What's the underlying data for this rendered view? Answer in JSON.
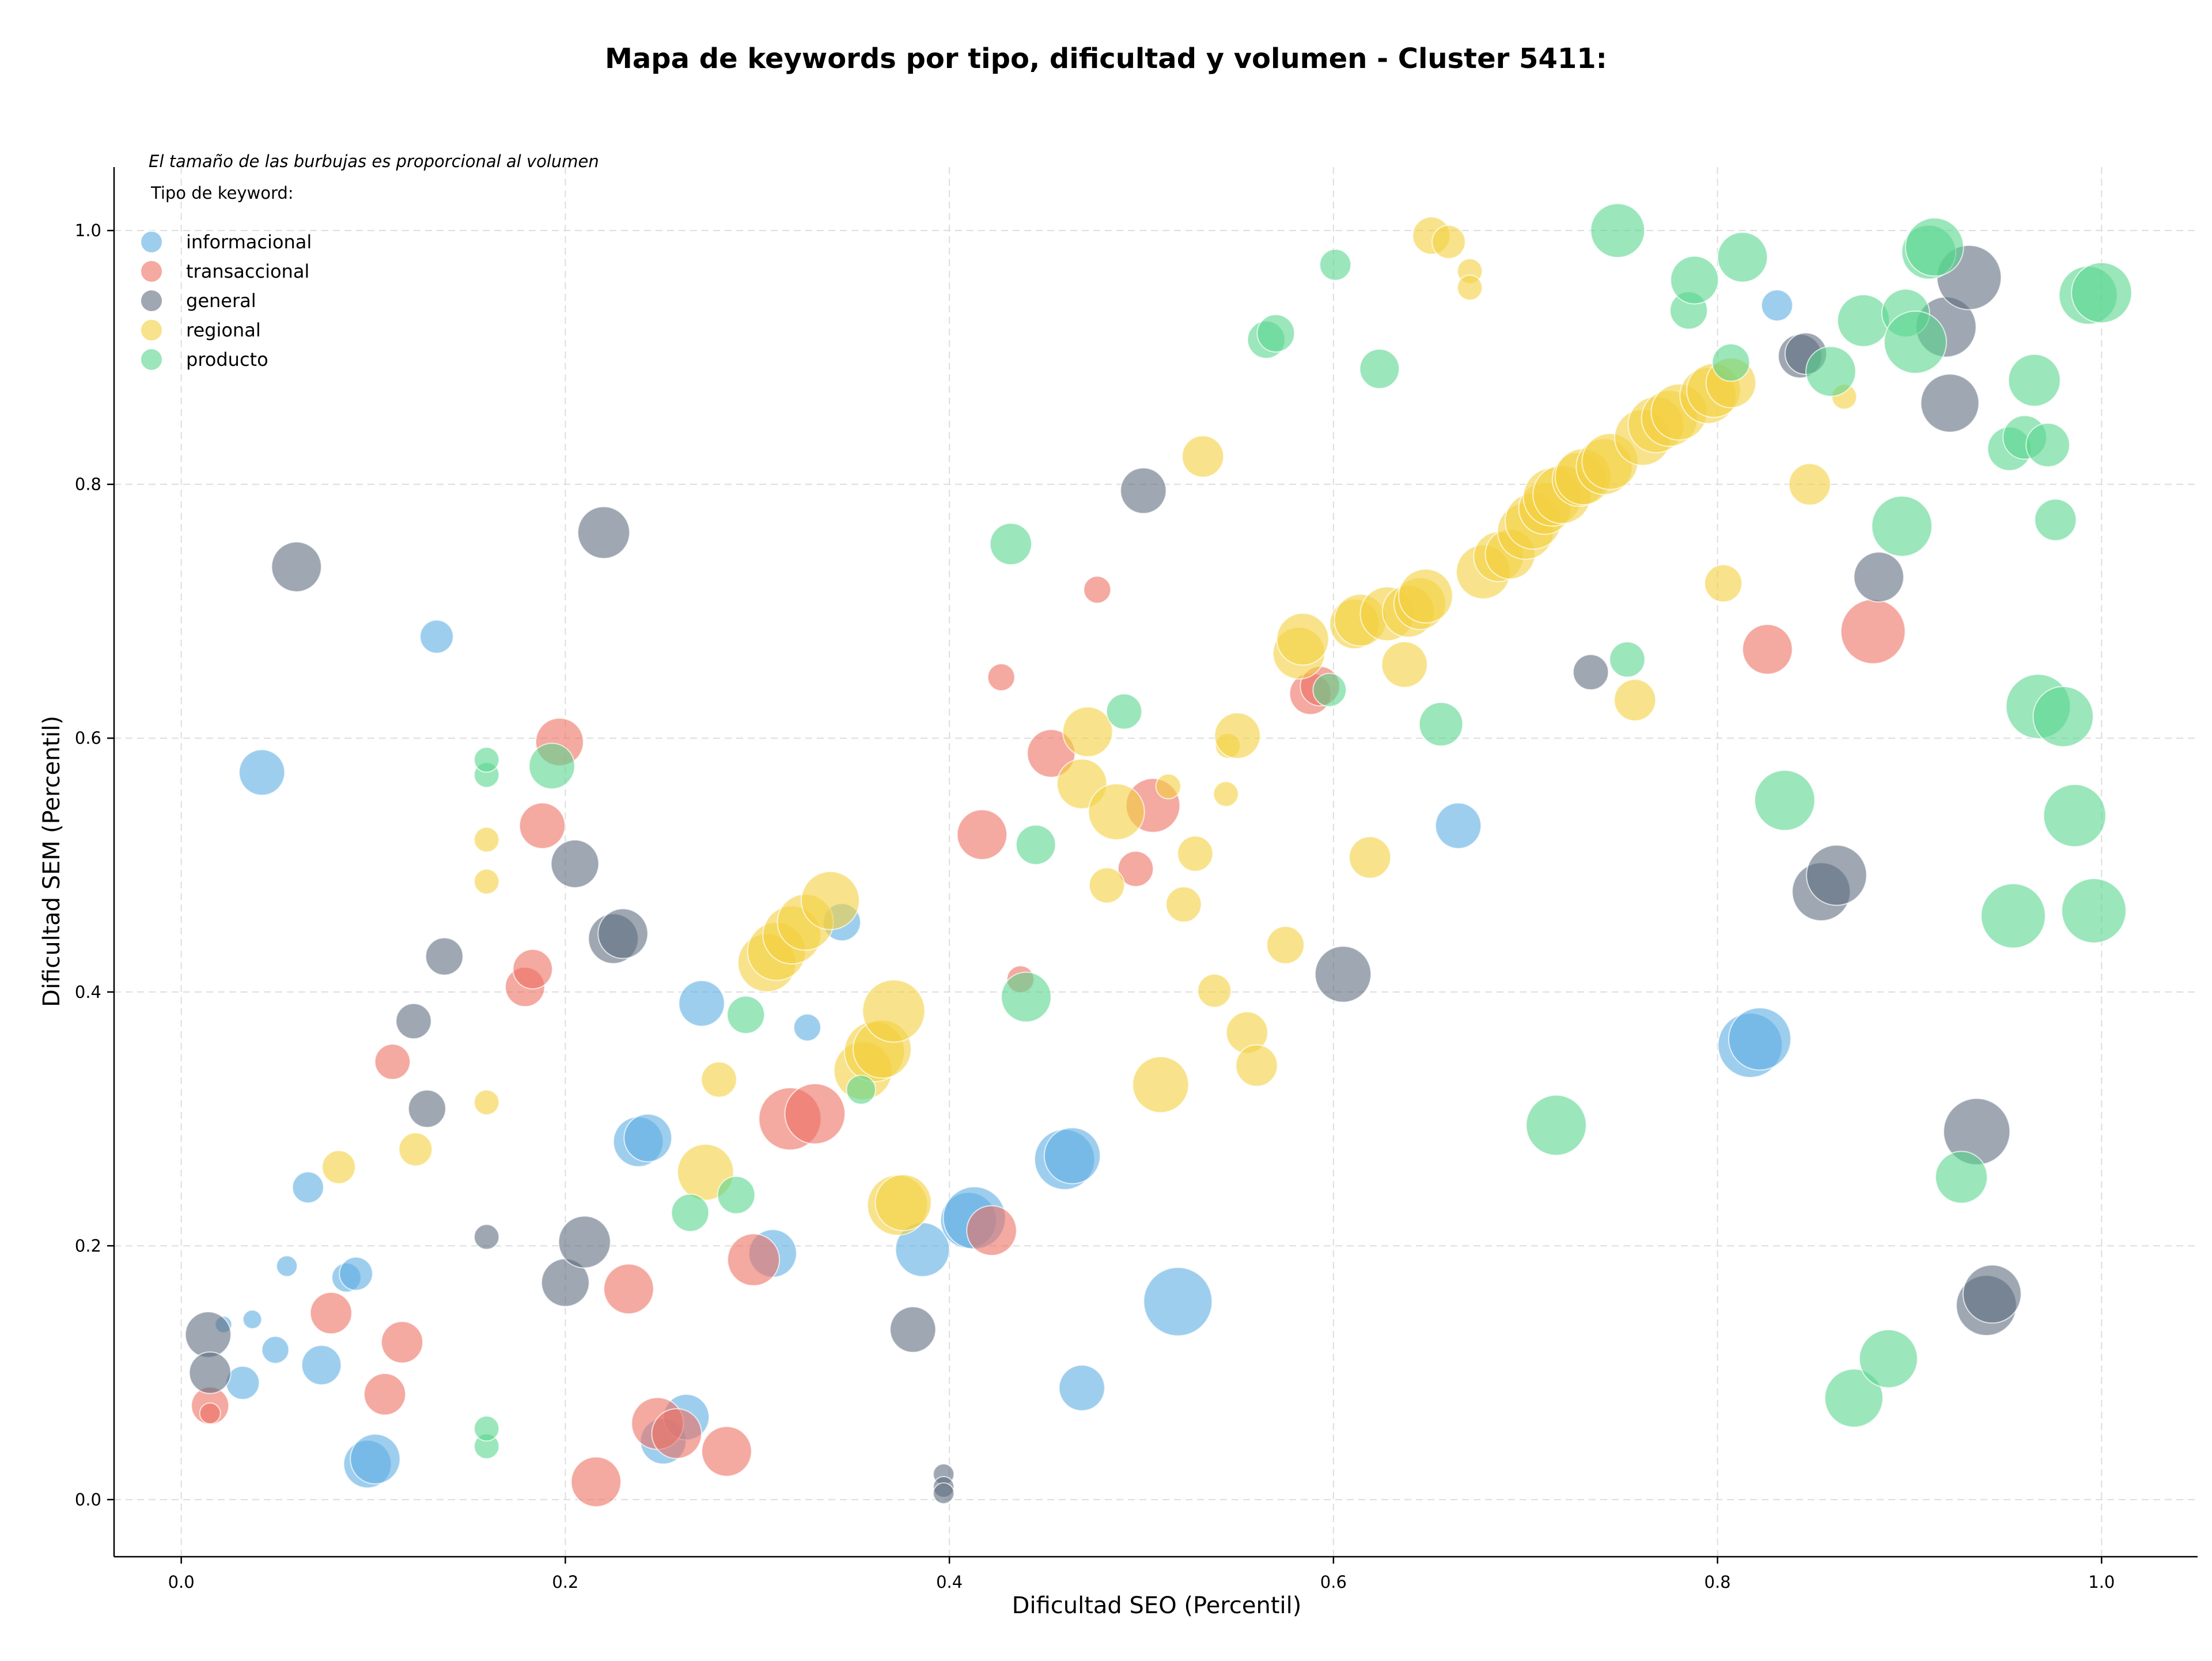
{
  "chart_data": {
    "type": "scatter",
    "title": "Mapa de keywords por tipo, dificultad y volumen - Cluster 5411:",
    "xlabel": "Dificultad SEO (Percentil)",
    "ylabel": "Dificultad SEM (Percentil)",
    "annotation": "El tamaño de las burbujas es proporcional al volumen",
    "legend_title": "Tipo de keyword:",
    "legend_position": "top-left",
    "xlim": [
      -0.035,
      1.05
    ],
    "ylim": [
      -0.045,
      1.05
    ],
    "x_ticks": [
      "0.0",
      "0.2",
      "0.4",
      "0.6",
      "0.8",
      "1.0"
    ],
    "y_ticks": [
      "0.0",
      "0.2",
      "0.4",
      "0.6",
      "0.8",
      "1.0"
    ],
    "grid": true,
    "series": [
      {
        "name": "informacional",
        "color": "#5dade2",
        "points": [
          [
            0.042,
            0.573,
            2.2
          ],
          [
            0.133,
            0.68,
            1.6
          ],
          [
            0.022,
            0.138,
            0.8
          ],
          [
            0.037,
            0.142,
            0.9
          ],
          [
            0.032,
            0.092,
            1.6
          ],
          [
            0.055,
            0.184,
            1.0
          ],
          [
            0.049,
            0.118,
            1.3
          ],
          [
            0.066,
            0.246,
            1.5
          ],
          [
            0.073,
            0.106,
            1.9
          ],
          [
            0.086,
            0.175,
            1.4
          ],
          [
            0.091,
            0.178,
            1.6
          ],
          [
            0.097,
            0.028,
            2.3
          ],
          [
            0.101,
            0.032,
            2.4
          ],
          [
            0.238,
            0.282,
            2.4
          ],
          [
            0.243,
            0.285,
            2.3
          ],
          [
            0.251,
            0.046,
            2.2
          ],
          [
            0.263,
            0.065,
            2.2
          ],
          [
            0.271,
            0.391,
            2.2
          ],
          [
            0.308,
            0.194,
            2.3
          ],
          [
            0.326,
            0.372,
            1.3
          ],
          [
            0.344,
            0.455,
            1.8
          ],
          [
            0.386,
            0.197,
            2.6
          ],
          [
            0.41,
            0.22,
            2.7
          ],
          [
            0.413,
            0.222,
            3.0
          ],
          [
            0.46,
            0.268,
            2.9
          ],
          [
            0.464,
            0.271,
            2.7
          ],
          [
            0.469,
            0.088,
            2.2
          ],
          [
            0.519,
            0.156,
            3.3
          ],
          [
            0.665,
            0.531,
            2.2
          ],
          [
            0.831,
            0.941,
            1.5
          ],
          [
            0.817,
            0.358,
            3.1
          ],
          [
            0.822,
            0.363,
            3.0
          ]
        ]
      },
      {
        "name": "transaccional",
        "color": "#ec7063",
        "points": [
          [
            0.015,
            0.074,
            1.8
          ],
          [
            0.015,
            0.068,
            1.0
          ],
          [
            0.078,
            0.147,
            2.0
          ],
          [
            0.106,
            0.083,
            2.0
          ],
          [
            0.11,
            0.345,
            1.7
          ],
          [
            0.115,
            0.124,
            2.0
          ],
          [
            0.179,
            0.404,
            1.9
          ],
          [
            0.183,
            0.418,
            1.9
          ],
          [
            0.188,
            0.531,
            2.2
          ],
          [
            0.197,
            0.597,
            2.3
          ],
          [
            0.216,
            0.014,
            2.4
          ],
          [
            0.233,
            0.166,
            2.4
          ],
          [
            0.248,
            0.06,
            2.5
          ],
          [
            0.258,
            0.052,
            2.4
          ],
          [
            0.284,
            0.038,
            2.4
          ],
          [
            0.298,
            0.189,
            2.5
          ],
          [
            0.317,
            0.3,
            3.0
          ],
          [
            0.33,
            0.304,
            2.9
          ],
          [
            0.417,
            0.524,
            2.4
          ],
          [
            0.422,
            0.212,
            2.4
          ],
          [
            0.427,
            0.648,
            1.3
          ],
          [
            0.437,
            0.41,
            1.3
          ],
          [
            0.453,
            0.588,
            2.3
          ],
          [
            0.477,
            0.717,
            1.3
          ],
          [
            0.497,
            0.497,
            1.7
          ],
          [
            0.506,
            0.547,
            2.6
          ],
          [
            0.588,
            0.635,
            2.0
          ],
          [
            0.593,
            0.641,
            1.9
          ],
          [
            0.826,
            0.67,
            2.4
          ],
          [
            0.881,
            0.684,
            3.1
          ]
        ]
      },
      {
        "name": "general",
        "color": "#5d6d7e",
        "points": [
          [
            0.014,
            0.13,
            2.2
          ],
          [
            0.015,
            0.1,
            2.0
          ],
          [
            0.06,
            0.735,
            2.4
          ],
          [
            0.121,
            0.377,
            1.7
          ],
          [
            0.128,
            0.308,
            1.8
          ],
          [
            0.137,
            0.428,
            1.8
          ],
          [
            0.159,
            0.207,
            1.2
          ],
          [
            0.205,
            0.501,
            2.3
          ],
          [
            0.2,
            0.171,
            2.3
          ],
          [
            0.21,
            0.203,
            2.5
          ],
          [
            0.22,
            0.762,
            2.5
          ],
          [
            0.225,
            0.442,
            2.4
          ],
          [
            0.23,
            0.446,
            2.4
          ],
          [
            0.381,
            0.134,
            2.2
          ],
          [
            0.397,
            0.02,
            1.0
          ],
          [
            0.397,
            0.01,
            1.0
          ],
          [
            0.397,
            0.005,
            1.0
          ],
          [
            0.501,
            0.795,
            2.2
          ],
          [
            0.605,
            0.414,
            2.7
          ],
          [
            0.734,
            0.652,
            1.7
          ],
          [
            0.843,
            0.901,
            2.1
          ],
          [
            0.846,
            0.903,
            2.0
          ],
          [
            0.854,
            0.479,
            2.8
          ],
          [
            0.862,
            0.492,
            2.9
          ],
          [
            0.884,
            0.727,
            2.4
          ],
          [
            0.919,
            0.924,
            2.9
          ],
          [
            0.921,
            0.864,
            2.8
          ],
          [
            0.931,
            0.963,
            3.1
          ],
          [
            0.935,
            0.29,
            3.2
          ],
          [
            0.94,
            0.153,
            2.9
          ],
          [
            0.943,
            0.162,
            2.8
          ]
        ]
      },
      {
        "name": "regional",
        "color": "#f4d03f",
        "points": [
          [
            0.082,
            0.262,
            1.6
          ],
          [
            0.122,
            0.276,
            1.6
          ],
          [
            0.159,
            0.313,
            1.2
          ],
          [
            0.159,
            0.487,
            1.2
          ],
          [
            0.159,
            0.52,
            1.2
          ],
          [
            0.273,
            0.258,
            2.7
          ],
          [
            0.28,
            0.331,
            1.7
          ],
          [
            0.305,
            0.423,
            2.8
          ],
          [
            0.31,
            0.432,
            2.8
          ],
          [
            0.318,
            0.445,
            2.8
          ],
          [
            0.325,
            0.455,
            2.7
          ],
          [
            0.338,
            0.472,
            2.8
          ],
          [
            0.355,
            0.338,
            2.8
          ],
          [
            0.361,
            0.353,
            2.9
          ],
          [
            0.365,
            0.355,
            2.8
          ],
          [
            0.371,
            0.385,
            3.0
          ],
          [
            0.373,
            0.232,
            2.9
          ],
          [
            0.376,
            0.234,
            2.7
          ],
          [
            0.469,
            0.564,
            2.4
          ],
          [
            0.472,
            0.605,
            2.4
          ],
          [
            0.482,
            0.484,
            1.7
          ],
          [
            0.487,
            0.542,
            2.7
          ],
          [
            0.51,
            0.327,
            2.7
          ],
          [
            0.514,
            0.562,
            1.2
          ],
          [
            0.522,
            0.469,
            1.7
          ],
          [
            0.528,
            0.509,
            1.7
          ],
          [
            0.532,
            0.822,
            2.0
          ],
          [
            0.538,
            0.401,
            1.6
          ],
          [
            0.544,
            0.556,
            1.2
          ],
          [
            0.545,
            0.594,
            1.2
          ],
          [
            0.55,
            0.602,
            2.2
          ],
          [
            0.555,
            0.368,
            2.0
          ],
          [
            0.56,
            0.342,
            2.0
          ],
          [
            0.575,
            0.437,
            1.8
          ],
          [
            0.582,
            0.667,
            2.5
          ],
          [
            0.584,
            0.678,
            2.5
          ],
          [
            0.611,
            0.69,
            2.4
          ],
          [
            0.614,
            0.693,
            2.5
          ],
          [
            0.619,
            0.506,
            2.0
          ],
          [
            0.628,
            0.698,
            2.6
          ],
          [
            0.637,
            0.658,
            2.2
          ],
          [
            0.639,
            0.7,
            2.5
          ],
          [
            0.645,
            0.706,
            2.5
          ],
          [
            0.648,
            0.712,
            2.6
          ],
          [
            0.651,
            0.996,
            1.8
          ],
          [
            0.66,
            0.991,
            1.6
          ],
          [
            0.671,
            0.968,
            1.2
          ],
          [
            0.671,
            0.955,
            1.2
          ],
          [
            0.678,
            0.731,
            2.6
          ],
          [
            0.686,
            0.743,
            2.4
          ],
          [
            0.692,
            0.745,
            2.4
          ],
          [
            0.7,
            0.763,
            2.7
          ],
          [
            0.704,
            0.771,
            2.7
          ],
          [
            0.71,
            0.781,
            2.5
          ],
          [
            0.714,
            0.79,
            2.8
          ],
          [
            0.719,
            0.792,
            2.8
          ],
          [
            0.728,
            0.804,
            2.6
          ],
          [
            0.73,
            0.806,
            2.7
          ],
          [
            0.741,
            0.814,
            2.7
          ],
          [
            0.744,
            0.818,
            2.7
          ],
          [
            0.757,
            0.63,
            2.0
          ],
          [
            0.761,
            0.837,
            2.7
          ],
          [
            0.768,
            0.847,
            2.7
          ],
          [
            0.775,
            0.852,
            2.7
          ],
          [
            0.78,
            0.857,
            2.7
          ],
          [
            0.795,
            0.87,
            2.7
          ],
          [
            0.798,
            0.874,
            2.6
          ],
          [
            0.803,
            0.722,
            1.8
          ],
          [
            0.807,
            0.88,
            2.4
          ],
          [
            0.848,
            0.8,
            2.0
          ],
          [
            0.866,
            0.869,
            1.2
          ]
        ]
      },
      {
        "name": "producto",
        "color": "#58d68d",
        "points": [
          [
            0.159,
            0.571,
            1.2
          ],
          [
            0.159,
            0.583,
            1.2
          ],
          [
            0.159,
            0.042,
            1.2
          ],
          [
            0.159,
            0.056,
            1.2
          ],
          [
            0.193,
            0.578,
            2.2
          ],
          [
            0.265,
            0.226,
            1.8
          ],
          [
            0.289,
            0.24,
            1.8
          ],
          [
            0.294,
            0.382,
            1.8
          ],
          [
            0.354,
            0.323,
            1.4
          ],
          [
            0.432,
            0.753,
            2.0
          ],
          [
            0.44,
            0.396,
            2.4
          ],
          [
            0.445,
            0.516,
            1.9
          ],
          [
            0.491,
            0.621,
            1.7
          ],
          [
            0.565,
            0.914,
            1.8
          ],
          [
            0.57,
            0.919,
            1.8
          ],
          [
            0.601,
            0.973,
            1.5
          ],
          [
            0.598,
            0.638,
            1.6
          ],
          [
            0.624,
            0.891,
            1.9
          ],
          [
            0.656,
            0.611,
            2.1
          ],
          [
            0.716,
            0.295,
            2.9
          ],
          [
            0.748,
            1.0,
            2.6
          ],
          [
            0.753,
            0.662,
            1.7
          ],
          [
            0.785,
            0.937,
            1.8
          ],
          [
            0.788,
            0.961,
            2.3
          ],
          [
            0.807,
            0.896,
            1.8
          ],
          [
            0.813,
            0.979,
            2.4
          ],
          [
            0.835,
            0.551,
            2.9
          ],
          [
            0.859,
            0.889,
            2.4
          ],
          [
            0.871,
            0.08,
            2.8
          ],
          [
            0.876,
            0.929,
            2.5
          ],
          [
            0.889,
            0.111,
            2.8
          ],
          [
            0.896,
            0.767,
            2.9
          ],
          [
            0.898,
            0.935,
            2.3
          ],
          [
            0.903,
            0.912,
            3.0
          ],
          [
            0.91,
            0.983,
            2.6
          ],
          [
            0.913,
            0.987,
            2.8
          ],
          [
            0.927,
            0.254,
            2.5
          ],
          [
            0.954,
            0.46,
            3.1
          ],
          [
            0.952,
            0.828,
            2.1
          ],
          [
            0.96,
            0.837,
            2.1
          ],
          [
            0.965,
            0.882,
            2.5
          ],
          [
            0.967,
            0.625,
            3.1
          ],
          [
            0.972,
            0.831,
            2.1
          ],
          [
            0.976,
            0.772,
            2.0
          ],
          [
            0.98,
            0.617,
            2.9
          ],
          [
            0.986,
            0.539,
            3.0
          ],
          [
            0.993,
            0.949,
            2.8
          ],
          [
            1.0,
            0.951,
            2.9
          ],
          [
            0.996,
            0.464,
            3.1
          ]
        ]
      }
    ]
  }
}
